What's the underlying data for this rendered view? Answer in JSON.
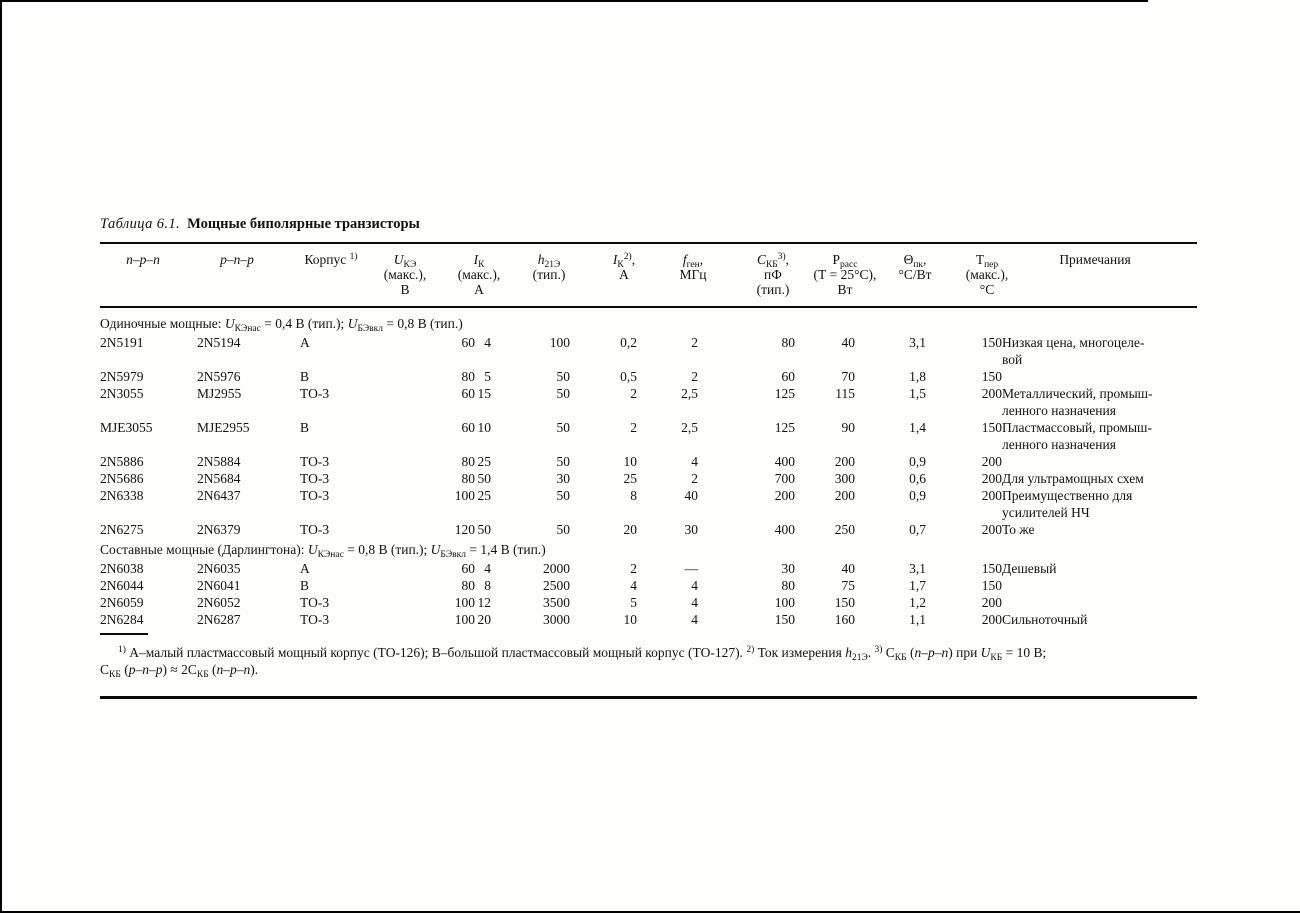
{
  "page": {
    "title_label": "Таблица 6.1.",
    "title_text": "Мощные биполярные транзисторы"
  },
  "table": {
    "headers": [
      "//n–p–n//",
      "//p–n–p//",
      "Корпус ^{1)}",
      "//U//_{КЭ}\n(макс.),\nВ",
      "//I//_{К}\n(макс.),\nА",
      "//h//_{21Э}\n(тип.)",
      "//I//_{К}^{2)},\nА",
      "//f//_{ген},\nМГц",
      "//С//_{КБ}^{3)},\nпФ\n(тип.)",
      "Р_{расс}\n(Т = 25°С),\nВт",
      "Θ_{пк},\n°С/Вт",
      "Т_{пер}\n(макс.),\n°С",
      "Примечания"
    ],
    "sections": [
      {
        "label": "Одиночные мощные: //U//_{КЭнас} = 0,4 В (тип.); //U//_{БЭвкл} = 0,8 В (тип.)",
        "rows": [
          [
            "2N5191",
            "2N5194",
            "А",
            "60",
            "4",
            "100",
            "0,2",
            "2",
            "80",
            "40",
            "3,1",
            "150",
            "Низкая цена, многоцеле-\nвой"
          ],
          [
            "2N5979",
            "2N5976",
            "В",
            "80",
            "5",
            "50",
            "0,5",
            "2",
            "60",
            "70",
            "1,8",
            "150",
            ""
          ],
          [
            "2N3055",
            "MJ2955",
            "ТО-3",
            "60",
            "15",
            "50",
            "2",
            "2,5",
            "125",
            "115",
            "1,5",
            "200",
            "Металлический, промыш-\nленного назначения"
          ],
          [
            "MJE3055",
            "MJE2955",
            "В",
            "60",
            "10",
            "50",
            "2",
            "2,5",
            "125",
            "90",
            "1,4",
            "150",
            "Пластмассовый, промыш-\nленного назначения"
          ],
          [
            "2N5886",
            "2N5884",
            "ТО-3",
            "80",
            "25",
            "50",
            "10",
            "4",
            "400",
            "200",
            "0,9",
            "200",
            ""
          ],
          [
            "2N5686",
            "2N5684",
            "ТО-3",
            "80",
            "50",
            "30",
            "25",
            "2",
            "700",
            "300",
            "0,6",
            "200",
            "Для ультрамощных схем"
          ],
          [
            "2N6338",
            "2N6437",
            "ТО-3",
            "100",
            "25",
            "50",
            "8",
            "40",
            "200",
            "200",
            "0,9",
            "200",
            "Преимущественно для\nусилителей НЧ"
          ],
          [
            "2N6275",
            "2N6379",
            "ТО-3",
            "120",
            "50",
            "50",
            "20",
            "30",
            "400",
            "250",
            "0,7",
            "200",
            "То же"
          ]
        ]
      },
      {
        "label": "Составные мощные (Дарлингтона): //U//_{КЭнас} = 0,8 В (тип.); //U//_{БЭвкл} = 1,4 В (тип.)",
        "rows": [
          [
            "2N6038",
            "2N6035",
            "А",
            "60",
            "4",
            "2000",
            "2",
            "—",
            "30",
            "40",
            "3,1",
            "150",
            "Дешевый"
          ],
          [
            "2N6044",
            "2N6041",
            "В",
            "80",
            "8",
            "2500",
            "4",
            "4",
            "80",
            "75",
            "1,7",
            "150",
            ""
          ],
          [
            "2N6059",
            "2N6052",
            "ТО-3",
            "100",
            "12",
            "3500",
            "5",
            "4",
            "100",
            "150",
            "1,2",
            "200",
            ""
          ],
          [
            "2N6284",
            "2N6287",
            "ТО-3",
            "100",
            "20",
            "3000",
            "10",
            "4",
            "150",
            "160",
            "1,1",
            "200",
            "Сильноточный"
          ]
        ]
      }
    ]
  },
  "footnote": "^{1)} А–малый пластмассовый мощный корпус (ТО-126); В–большой пластмассовый мощный корпус (ТО-127). ^{2)} Ток измерения //h//_{21Э}. ^{3)} С_{КБ} (//n–p–n//) при //U//_{КБ} = 10 В;\nС_{КБ} (//p–n–p//) ≈ 2С_{КБ} (//n–p–n//)."
}
